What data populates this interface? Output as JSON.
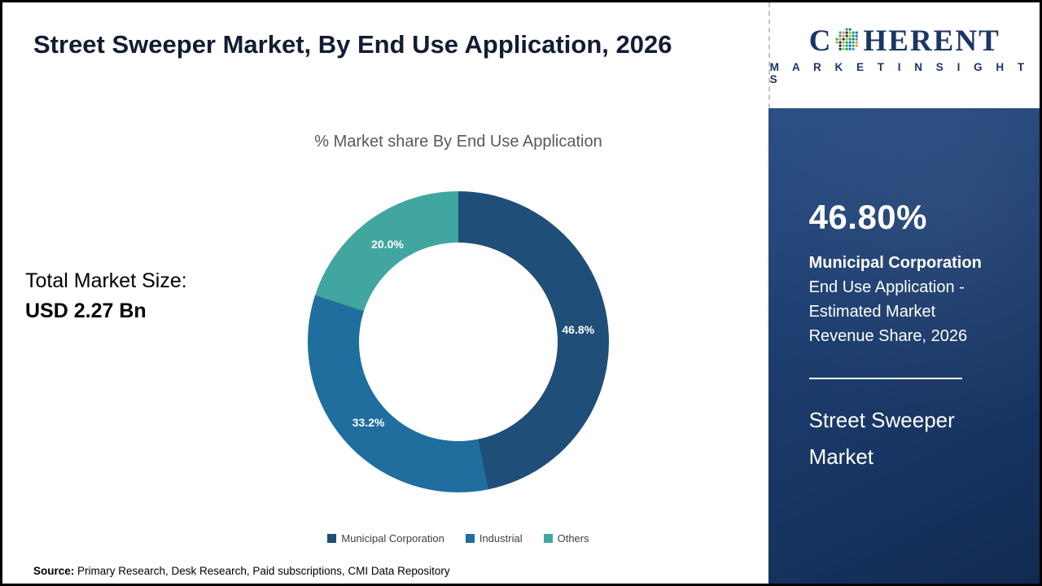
{
  "page": {
    "title": "Street Sweeper Market, By End Use Application, 2026",
    "total_market_label": "Total Market Size:",
    "total_market_value": "USD 2.27 Bn",
    "source_label": "Source:",
    "source_text": " Primary Research, Desk Research, Paid subscriptions, CMI Data Repository"
  },
  "chart_data": {
    "type": "pie",
    "donut": true,
    "title": "% Market share By End Use Application",
    "categories": [
      "Municipal Corporation",
      "Industrial",
      "Others"
    ],
    "values": [
      46.8,
      33.2,
      20.0
    ],
    "slice_labels": [
      "46.8%",
      "33.2%",
      "20.0%"
    ],
    "colors": [
      "#1f4e79",
      "#1f6e9e",
      "#41a6a0"
    ],
    "legend_position": "bottom",
    "start_angle_deg": 0,
    "direction": "clockwise"
  },
  "sidebar": {
    "logo_part1": "C",
    "logo_part2": "HERENT",
    "logo_subtext": "M A R K E T   I N S I G H T S",
    "stat_value": "46.80%",
    "stat_label_bold": "Municipal Corporation",
    "stat_description": "End Use Application - Estimated Market Revenue Share, 2026",
    "product_name": "Street Sweeper Market",
    "panel_color": "#1e3f72",
    "logo_color": "#1b3566"
  }
}
